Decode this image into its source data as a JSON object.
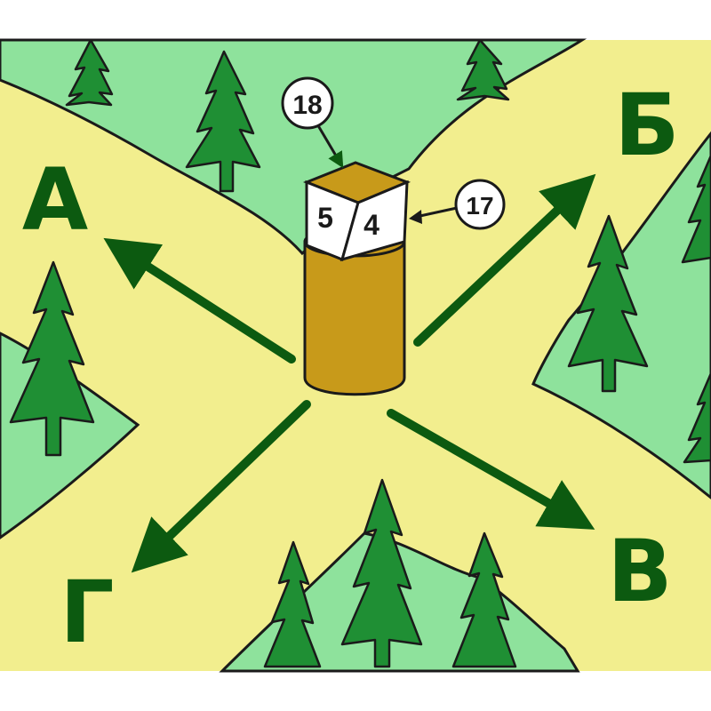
{
  "colors": {
    "background": "#ffffff",
    "road": "#f2ee8e",
    "meadow": "#8ee29c",
    "tree": "#1f8f34",
    "tree_outline": "#1a1a1a",
    "arrow": "#0c5a10",
    "post": "#c89a1a",
    "post_outline": "#1a1a1a",
    "letter": "#0c5a10"
  },
  "directions": {
    "a": "А",
    "b": "Б",
    "v": "В",
    "g": "Г"
  },
  "post": {
    "face_left": "5",
    "face_front": "4"
  },
  "callouts": {
    "top": "18",
    "right": "17"
  }
}
